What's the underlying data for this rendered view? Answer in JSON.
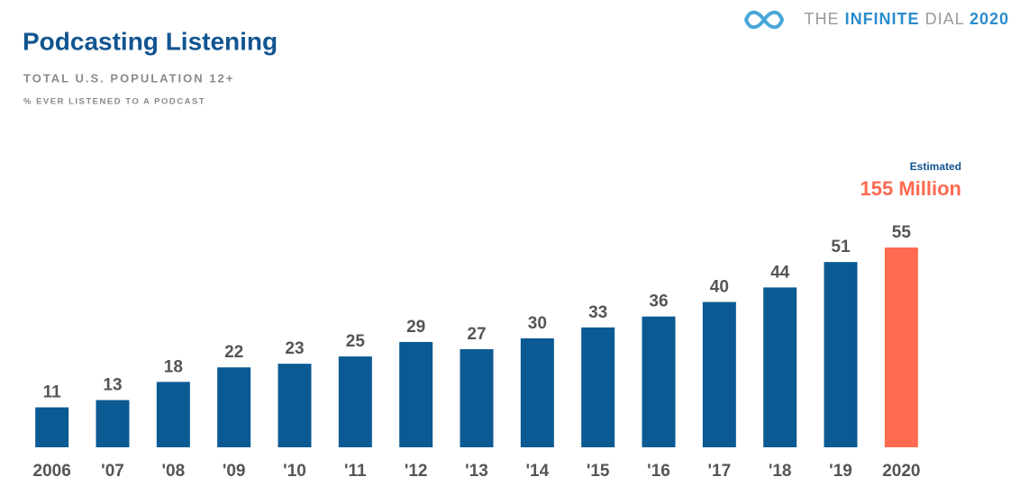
{
  "chart_data": {
    "type": "bar",
    "title": "Podcasting Listening",
    "subtitle": "TOTAL U.S. POPULATION 12+",
    "note": "% EVER LISTENED TO A PODCAST",
    "brand": [
      "THE",
      "INFINITE",
      "DIAL",
      "2020"
    ],
    "annotation": {
      "label": "Estimated",
      "text": "155 Million"
    },
    "categories": [
      "2006",
      "'07",
      "'08",
      "'09",
      "'10",
      "'11",
      "'12",
      "'13",
      "'14",
      "'15",
      "'16",
      "'17",
      "'18",
      "'19",
      "2020"
    ],
    "values": [
      11,
      13,
      18,
      22,
      23,
      25,
      29,
      27,
      30,
      33,
      36,
      40,
      44,
      51,
      55
    ],
    "colors": [
      "#0b5a93",
      "#0b5a93",
      "#0b5a93",
      "#0b5a93",
      "#0b5a93",
      "#0b5a93",
      "#0b5a93",
      "#0b5a93",
      "#0b5a93",
      "#0b5a93",
      "#0b5a93",
      "#0b5a93",
      "#0b5a93",
      "#0b5a93",
      "#ff6a50"
    ]
  }
}
